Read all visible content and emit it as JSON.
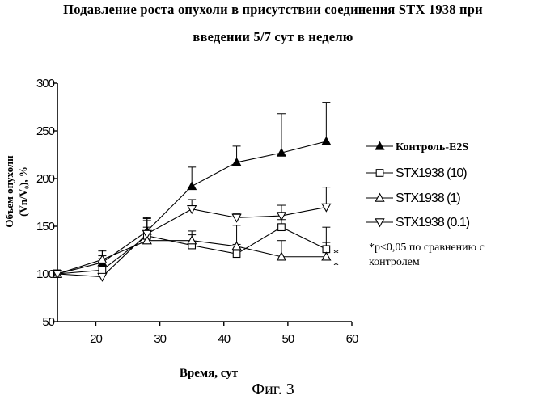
{
  "title_line1": "Подавление роста опухоли в присутствии соединения STX 1938 при",
  "title_line2": "введении 5/7 сут в неделю",
  "figure_caption": "Фиг. 3",
  "chart_data": {
    "type": "line",
    "title": "Подавление роста опухоли в присутствии соединения STX 1938 при введении 5/7 сут в неделю",
    "xlabel": "Время, сут",
    "ylabel_line1": "Объем опухоли",
    "ylabel_line2": "(Vn/V₀), %",
    "xlim": [
      14,
      60
    ],
    "ylim": [
      50,
      300
    ],
    "xticks": [
      20,
      30,
      40,
      50,
      60
    ],
    "yticks": [
      50,
      100,
      150,
      200,
      250,
      300
    ],
    "grid": false,
    "legend_position": "right",
    "series": [
      {
        "name": "Контроль-E2S",
        "marker": "filled-triangle-up",
        "x": [
          14,
          21,
          28,
          35,
          42,
          49,
          56
        ],
        "y": [
          100,
          112,
          145,
          192,
          217,
          227,
          239
        ],
        "err": [
          4,
          12,
          14,
          20,
          17,
          41,
          41
        ]
      },
      {
        "name": "STX1938 (10)",
        "marker": "open-square",
        "x": [
          14,
          21,
          28,
          35,
          42,
          49,
          56
        ],
        "y": [
          100,
          104,
          140,
          130,
          121,
          149,
          126
        ],
        "err": [
          4,
          12,
          16,
          11,
          10,
          8,
          23
        ]
      },
      {
        "name": "STX1938 (1)",
        "marker": "open-triangle-up",
        "x": [
          14,
          21,
          28,
          35,
          42,
          49,
          56
        ],
        "y": [
          100,
          115,
          135,
          135,
          129,
          118,
          118
        ],
        "err": [
          4,
          10,
          14,
          10,
          22,
          17,
          15
        ]
      },
      {
        "name": "STX1938 (0.1)",
        "marker": "open-triangle-down",
        "x": [
          14,
          21,
          28,
          35,
          42,
          49,
          56
        ],
        "y": [
          100,
          97,
          142,
          168,
          159,
          161,
          170
        ],
        "err": [
          4,
          22,
          16,
          10,
          4,
          11,
          21
        ]
      }
    ],
    "significance_marks": [
      "*",
      "*"
    ],
    "annotation": "*p<0,05 по сравнению с контролем",
    "annotation_line1": "*p<0,05 по сравнению с",
    "annotation_line2": "контролем"
  }
}
